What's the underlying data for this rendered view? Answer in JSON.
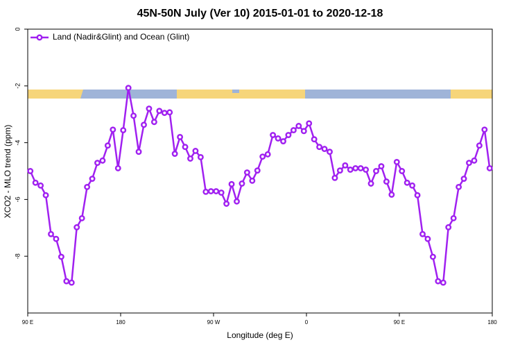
{
  "chart_data": {
    "type": "line",
    "title": "45N-50N July (Ver 10)   2015-01-01 to 2020-12-18",
    "xlabel": "Longitude (deg E)",
    "ylabel": "XCO2 - MLO trend (ppm)",
    "x": [
      92.5,
      97.5,
      102.5,
      107.5,
      112.5,
      117.5,
      122.5,
      127.5,
      132.5,
      137.5,
      142.5,
      147.5,
      152.5,
      157.5,
      162.5,
      167.5,
      172.5,
      177.5,
      182.5,
      187.5,
      192.5,
      197.5,
      202.5,
      207.5,
      212.5,
      217.5,
      222.5,
      227.5,
      232.5,
      237.5,
      242.5,
      247.5,
      252.5,
      257.5,
      262.5,
      267.5,
      272.5,
      277.5,
      282.5,
      287.5,
      292.5,
      297.5,
      302.5,
      307.5,
      312.5,
      317.5,
      322.5,
      327.5,
      332.5,
      337.5,
      342.5,
      347.5,
      352.5,
      357.5,
      362.5,
      367.5,
      372.5,
      377.5,
      382.5,
      387.5,
      392.5,
      397.5,
      402.5,
      407.5,
      412.5,
      417.5,
      422.5,
      427.5,
      432.5,
      437.5,
      442.5,
      447.5,
      452.5,
      457.5,
      462.5,
      467.5,
      472.5,
      477.5,
      482.5,
      487.5,
      492.5,
      497.5,
      502.5,
      507.5,
      512.5,
      517.5,
      522.5,
      527.5,
      532.5,
      537.5
    ],
    "series": [
      {
        "name": "Land (Nadir&Glint) and Ocean (Glint)",
        "color": "#a020f0",
        "values": [
          -5.0,
          -5.41,
          -5.51,
          -5.85,
          -7.22,
          -7.39,
          -8.02,
          -8.88,
          -8.93,
          -6.98,
          -6.66,
          -5.56,
          -5.27,
          -4.71,
          -4.63,
          -4.1,
          -3.54,
          -4.9,
          -3.56,
          -2.07,
          -3.05,
          -4.32,
          -3.37,
          -2.8,
          -3.27,
          -2.88,
          -2.95,
          -2.93,
          -4.39,
          -3.8,
          -4.15,
          -4.56,
          -4.29,
          -4.51,
          -5.73,
          -5.71,
          -5.71,
          -5.76,
          -6.15,
          -5.46,
          -6.07,
          -5.44,
          -5.05,
          -5.34,
          -4.98,
          -4.49,
          -4.41,
          -3.73,
          -3.85,
          -3.95,
          -3.73,
          -3.56,
          -3.41,
          -3.59,
          -3.32,
          -3.88,
          -4.15,
          -4.22,
          -4.32,
          -5.24,
          -4.98,
          -4.8,
          -4.95,
          -4.9,
          -4.9,
          -4.95,
          -5.44,
          -5.0,
          -4.83,
          -5.37,
          -5.83,
          -4.68,
          -5.0,
          -5.41,
          -5.51,
          -5.85,
          -7.22,
          -7.39,
          -8.02,
          -8.88,
          -8.93,
          -6.98,
          -6.66,
          -5.56,
          -5.27,
          -4.71,
          -4.63,
          -4.1,
          -3.54,
          -4.9
        ]
      }
    ],
    "xlim": [
      90,
      540
    ],
    "xticks": [
      {
        "value": 90,
        "label": "90 E"
      },
      180,
      {
        "value": 270,
        "label": "90 W"
      },
      {
        "value": 360,
        "label": "0"
      },
      {
        "value": 450,
        "label": "90 E"
      },
      {
        "value": 540,
        "label": "180"
      }
    ],
    "ylim": [
      -10,
      0
    ],
    "yticks": [
      0,
      -2,
      -4,
      -6,
      -8
    ],
    "legend": "top-left"
  }
}
